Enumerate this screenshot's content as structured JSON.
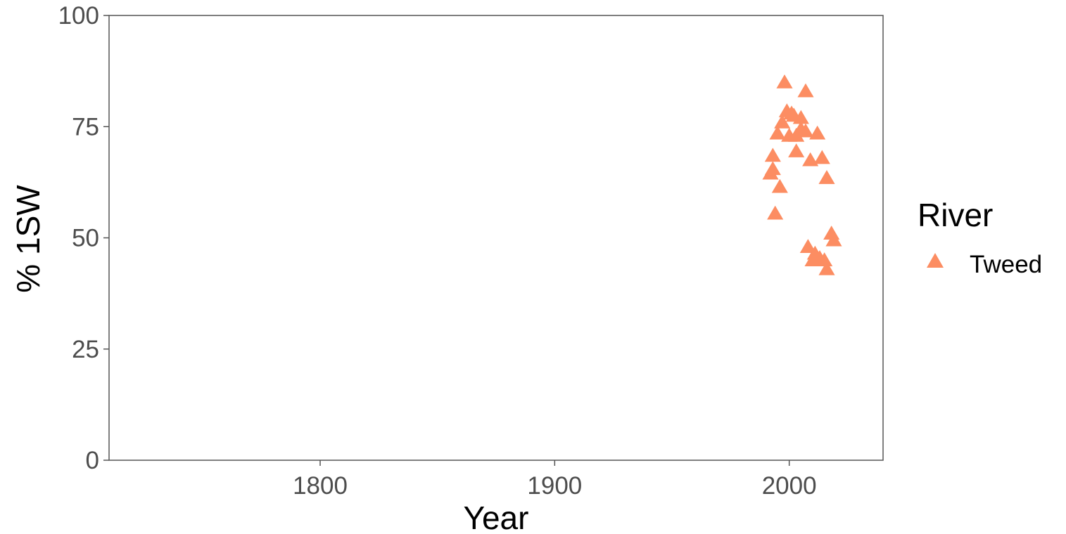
{
  "chart_data": {
    "type": "scatter",
    "xlabel": "Year",
    "ylabel": "% 1SW",
    "xlim": [
      1710,
      2040
    ],
    "ylim": [
      0,
      100
    ],
    "x_ticks": [
      1800,
      1900,
      2000
    ],
    "y_ticks": [
      0,
      25,
      50,
      75,
      100
    ],
    "x_tick_labels": [
      "1800",
      "1900",
      "2000"
    ],
    "y_tick_labels": [
      "0",
      "25",
      "50",
      "75",
      "100"
    ],
    "grid": false,
    "legend": {
      "title": "River",
      "position": "right",
      "entries": [
        {
          "label": "Tweed",
          "color": "#FC8D62",
          "marker": "triangle"
        }
      ]
    },
    "series": [
      {
        "name": "Tweed",
        "color": "#FC8D62",
        "marker": "triangle",
        "points": [
          {
            "x": 1992,
            "y": 64.5
          },
          {
            "x": 1993,
            "y": 65.5
          },
          {
            "x": 1993,
            "y": 68.5
          },
          {
            "x": 1994,
            "y": 55.5
          },
          {
            "x": 1995,
            "y": 73.5
          },
          {
            "x": 1996,
            "y": 61.5
          },
          {
            "x": 1997,
            "y": 76.0
          },
          {
            "x": 1998,
            "y": 85.0
          },
          {
            "x": 1999,
            "y": 78.5
          },
          {
            "x": 2000,
            "y": 73.0
          },
          {
            "x": 2001,
            "y": 78.0
          },
          {
            "x": 2002,
            "y": 77.5
          },
          {
            "x": 2003,
            "y": 73.0
          },
          {
            "x": 2003,
            "y": 69.5
          },
          {
            "x": 2005,
            "y": 74.5
          },
          {
            "x": 2005,
            "y": 77.0
          },
          {
            "x": 2007,
            "y": 74.0
          },
          {
            "x": 2007,
            "y": 83.0
          },
          {
            "x": 2008,
            "y": 48.0
          },
          {
            "x": 2009,
            "y": 67.5
          },
          {
            "x": 2010,
            "y": 45.0
          },
          {
            "x": 2011,
            "y": 46.5
          },
          {
            "x": 2012,
            "y": 73.5
          },
          {
            "x": 2013,
            "y": 45.5
          },
          {
            "x": 2014,
            "y": 68.0
          },
          {
            "x": 2015,
            "y": 45.0
          },
          {
            "x": 2016,
            "y": 63.5
          },
          {
            "x": 2016,
            "y": 43.0
          },
          {
            "x": 2018,
            "y": 51.0
          },
          {
            "x": 2019,
            "y": 49.5
          }
        ]
      }
    ]
  }
}
